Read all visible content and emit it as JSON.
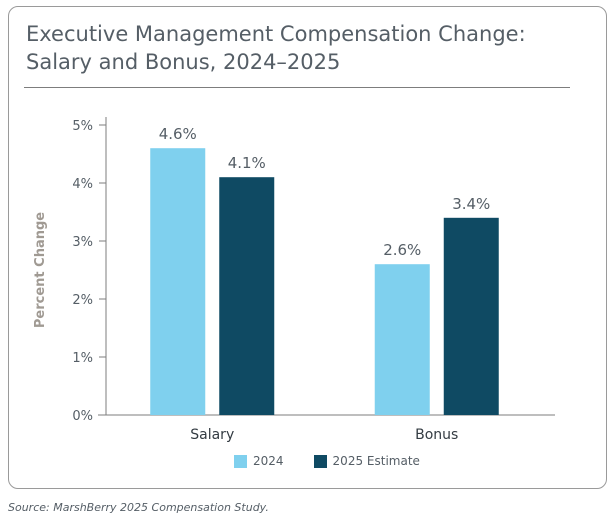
{
  "chart_data": {
    "type": "bar",
    "title": "Executive Management Compensation Change: Salary and Bonus, 2024–2025",
    "xlabel": "",
    "ylabel": "Percent Change",
    "categories": [
      "Salary",
      "Bonus"
    ],
    "series": [
      {
        "name": "2024",
        "values": [
          4.6,
          2.6
        ],
        "color": "#7fd0ee"
      },
      {
        "name": "2025 Estimate",
        "values": [
          4.1,
          3.4
        ],
        "color": "#0f4a63"
      }
    ],
    "data_labels": [
      [
        "4.6%",
        "2.6%"
      ],
      [
        "4.1%",
        "3.4%"
      ]
    ],
    "ylim": [
      0,
      5
    ],
    "yticks": [
      0,
      1,
      2,
      3,
      4,
      5
    ],
    "ytick_labels": [
      "0%",
      "1%",
      "2%",
      "3%",
      "4%",
      "5%"
    ],
    "grid": false,
    "legend_position": "bottom"
  },
  "source": "Source: MarshBerry 2025 Compensation Study.",
  "colors": {
    "title_text": "#555e66",
    "axis_label": "#a09a93",
    "axis_line": "#7d7d7d",
    "card_border": "#9a9a9a"
  }
}
